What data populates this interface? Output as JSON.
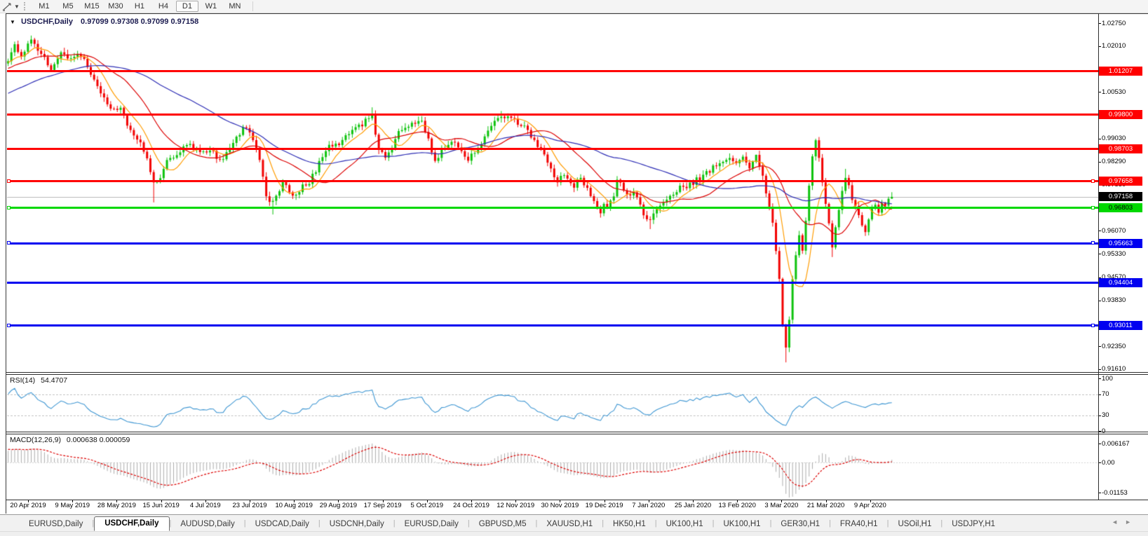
{
  "toolbar": {
    "timeframes": [
      "M1",
      "M5",
      "M15",
      "M30",
      "H1",
      "H4",
      "D1",
      "W1",
      "MN"
    ],
    "active_timeframe": "D1"
  },
  "chart": {
    "symbol_title": "USDCHF,Daily",
    "ohlc": "0.97099 0.97308 0.97099 0.97158"
  },
  "price_axis": {
    "ticks": [
      "1.02750",
      "1.02010",
      "1.00530",
      "0.99030",
      "0.98290",
      "0.97550",
      "0.96070",
      "0.95330",
      "0.94570",
      "0.93830",
      "0.92350",
      "0.91610"
    ]
  },
  "levels": {
    "red": [
      {
        "price": "1.01207"
      },
      {
        "price": "0.99800"
      },
      {
        "price": "0.98703"
      },
      {
        "price": "0.97658",
        "handles": true
      }
    ],
    "green": [
      {
        "price": "0.96803",
        "handles": true
      }
    ],
    "blue": [
      {
        "price": "0.95663",
        "handles": true
      },
      {
        "price": "0.94404"
      },
      {
        "price": "0.93011",
        "handles": true
      }
    ],
    "current": {
      "price": "0.97158"
    }
  },
  "date_axis": {
    "labels": [
      "20 Apr 2019",
      "9 May 2019",
      "28 May 2019",
      "15 Jun 2019",
      "4 Jul 2019",
      "23 Jul 2019",
      "10 Aug 2019",
      "29 Aug 2019",
      "17 Sep 2019",
      "5 Oct 2019",
      "24 Oct 2019",
      "12 Nov 2019",
      "30 Nov 2019",
      "19 Dec 2019",
      "7 Jan 2020",
      "25 Jan 2020",
      "13 Feb 2020",
      "3 Mar 2020",
      "21 Mar 2020",
      "9 Apr 2020"
    ]
  },
  "rsi": {
    "name": "RSI(14)",
    "value": "54.4707",
    "axis": [
      "100",
      "70",
      "30",
      "0"
    ],
    "guides": [
      70,
      30
    ]
  },
  "macd": {
    "name": "MACD(12,26,9)",
    "value": "0.000638 0.000059",
    "axis_max": "0.006167",
    "axis_zero": "0.00",
    "axis_min": "-0.01153"
  },
  "tabs": {
    "items": [
      {
        "label": "EURUSD,Daily"
      },
      {
        "label": "USDCHF,Daily",
        "active": true
      },
      {
        "label": "AUDUSD,Daily"
      },
      {
        "label": "USDCAD,Daily"
      },
      {
        "label": "USDCNH,Daily"
      },
      {
        "label": "EURUSD,Daily"
      },
      {
        "label": "GBPUSD,M5"
      },
      {
        "label": "XAUUSD,H1"
      },
      {
        "label": "HK50,H1"
      },
      {
        "label": "UK100,H1"
      },
      {
        "label": "UK100,H1"
      },
      {
        "label": "GER30,H1"
      },
      {
        "label": "FRA40,H1"
      },
      {
        "label": "USOil,H1"
      },
      {
        "label": "USDJPY,H1"
      }
    ],
    "scroll_left_icon": "◄",
    "scroll_right_icon": "►"
  },
  "colors": {
    "bull": "#0cc20c",
    "bear": "#f20000",
    "ma_fast": "#ff9c00",
    "ma_mid": "#dc0000",
    "ma_slow": "#2c2cb4",
    "level_red": "#ff0000",
    "level_green": "#00d800",
    "level_blue": "#0000f0",
    "current_line": "#bebebe",
    "current_badge_bg": "#000000",
    "rsi_line": "#3e96d2",
    "macd_hist": "#acacac",
    "macd_signal": "#dc0000"
  },
  "chart_data": {
    "type": "candlestick",
    "symbol": "USDCHF",
    "timeframe": "Daily",
    "pre_candles": 60,
    "candles_total": 268,
    "last_candle": {
      "open": 0.97099,
      "high": 0.97308,
      "low": 0.97099,
      "close": 0.97158
    },
    "anchors": [
      [
        -60,
        0.988
      ],
      [
        -40,
        0.9985
      ],
      [
        -25,
        1.007
      ],
      [
        -12,
        1.0125
      ],
      [
        -5,
        1.0148
      ],
      [
        0,
        1.0155
      ],
      [
        2,
        1.02
      ],
      [
        4,
        1.0172
      ],
      [
        7,
        1.0218
      ],
      [
        10,
        1.0185
      ],
      [
        13,
        1.0128
      ],
      [
        16,
        1.0188
      ],
      [
        19,
        1.0158
      ],
      [
        21,
        1.0182
      ],
      [
        24,
        1.0138
      ],
      [
        26,
        1.0088
      ],
      [
        28,
        1.0048
      ],
      [
        30,
        1.001
      ],
      [
        32,
        0.9992
      ],
      [
        34,
        1.001
      ],
      [
        36,
        0.9955
      ],
      [
        38,
        0.9922
      ],
      [
        40,
        0.9898
      ],
      [
        42,
        0.9842
      ],
      [
        44,
        0.9755
      ],
      [
        46,
        0.9778
      ],
      [
        48,
        0.983
      ],
      [
        50,
        0.9848
      ],
      [
        52,
        0.9865
      ],
      [
        55,
        0.9885
      ],
      [
        58,
        0.985
      ],
      [
        61,
        0.9875
      ],
      [
        64,
        0.983
      ],
      [
        67,
        0.9865
      ],
      [
        70,
        0.9922
      ],
      [
        72,
        0.9942
      ],
      [
        74,
        0.9908
      ],
      [
        76,
        0.984
      ],
      [
        78,
        0.9718
      ],
      [
        80,
        0.9695
      ],
      [
        83,
        0.9765
      ],
      [
        86,
        0.9718
      ],
      [
        89,
        0.9748
      ],
      [
        91,
        0.9765
      ],
      [
        94,
        0.9822
      ],
      [
        97,
        0.9878
      ],
      [
        100,
        0.9888
      ],
      [
        104,
        0.993
      ],
      [
        107,
        0.995
      ],
      [
        110,
        0.9982
      ],
      [
        112,
        0.9868
      ],
      [
        114,
        0.9838
      ],
      [
        118,
        0.9922
      ],
      [
        122,
        0.9952
      ],
      [
        125,
        0.9965
      ],
      [
        127,
        0.9895
      ],
      [
        129,
        0.9825
      ],
      [
        132,
        0.9878
      ],
      [
        135,
        0.99
      ],
      [
        137,
        0.9862
      ],
      [
        139,
        0.9835
      ],
      [
        142,
        0.9868
      ],
      [
        145,
        0.9922
      ],
      [
        147,
        0.9952
      ],
      [
        149,
        0.9978
      ],
      [
        152,
        0.9968
      ],
      [
        156,
        0.9938
      ],
      [
        159,
        0.9905
      ],
      [
        162,
        0.9845
      ],
      [
        164,
        0.98
      ],
      [
        166,
        0.9765
      ],
      [
        168,
        0.9788
      ],
      [
        171,
        0.9752
      ],
      [
        173,
        0.9778
      ],
      [
        175,
        0.974
      ],
      [
        177,
        0.97
      ],
      [
        179,
        0.9668
      ],
      [
        180,
        0.9692
      ],
      [
        181,
        0.9672
      ],
      [
        183,
        0.9725
      ],
      [
        184,
        0.9772
      ],
      [
        186,
        0.9745
      ],
      [
        188,
        0.9715
      ],
      [
        189,
        0.9725
      ],
      [
        191,
        0.9685
      ],
      [
        192,
        0.9658
      ],
      [
        194,
        0.964
      ],
      [
        195,
        0.9668
      ],
      [
        197,
        0.969
      ],
      [
        199,
        0.9715
      ],
      [
        202,
        0.974
      ],
      [
        205,
        0.9752
      ],
      [
        209,
        0.9775
      ],
      [
        212,
        0.98
      ],
      [
        215,
        0.9822
      ],
      [
        218,
        0.9838
      ],
      [
        220,
        0.982
      ],
      [
        222,
        0.9842
      ],
      [
        224,
        0.9815
      ],
      [
        226,
        0.9845
      ],
      [
        228,
        0.9788
      ],
      [
        230,
        0.968
      ],
      [
        231,
        0.9625
      ],
      [
        232,
        0.9532
      ],
      [
        233,
        0.945
      ],
      [
        234,
        0.9298
      ],
      [
        235,
        0.923
      ],
      [
        236,
        0.9328
      ],
      [
        237,
        0.9442
      ],
      [
        238,
        0.9528
      ],
      [
        239,
        0.9585
      ],
      [
        240,
        0.9552
      ],
      [
        241,
        0.9648
      ],
      [
        242,
        0.9748
      ],
      [
        243,
        0.9848
      ],
      [
        244,
        0.9888
      ],
      [
        245,
        0.9842
      ],
      [
        246,
        0.9768
      ],
      [
        247,
        0.9698
      ],
      [
        248,
        0.9638
      ],
      [
        249,
        0.9562
      ],
      [
        250,
        0.9618
      ],
      [
        251,
        0.9682
      ],
      [
        252,
        0.9728
      ],
      [
        253,
        0.9778
      ],
      [
        254,
        0.9748
      ],
      [
        255,
        0.9712
      ],
      [
        256,
        0.9682
      ],
      [
        257,
        0.9652
      ],
      [
        258,
        0.9622
      ],
      [
        259,
        0.9602
      ],
      [
        260,
        0.9642
      ],
      [
        261,
        0.9672
      ],
      [
        262,
        0.9692
      ],
      [
        263,
        0.9668
      ],
      [
        264,
        0.97
      ],
      [
        265,
        0.9688
      ],
      [
        266,
        0.971
      ],
      [
        267,
        0.97158
      ]
    ],
    "wick_overrides": {
      "7": {
        "high": 1.0235
      },
      "44": {
        "low": 0.9698
      },
      "80": {
        "low": 0.9659
      },
      "110": {
        "high": 1.0004
      },
      "125": {
        "high": 0.9976
      },
      "149": {
        "high": 0.9992
      },
      "179": {
        "low": 0.9649
      },
      "194": {
        "low": 0.9612
      },
      "226": {
        "high": 0.9852
      },
      "235": {
        "low": 0.9183
      },
      "244": {
        "high": 0.9903
      },
      "249": {
        "low": 0.9522
      },
      "253": {
        "high": 0.9806
      },
      "259": {
        "low": 0.959
      }
    },
    "ma_periods": [
      8,
      21,
      55
    ]
  }
}
